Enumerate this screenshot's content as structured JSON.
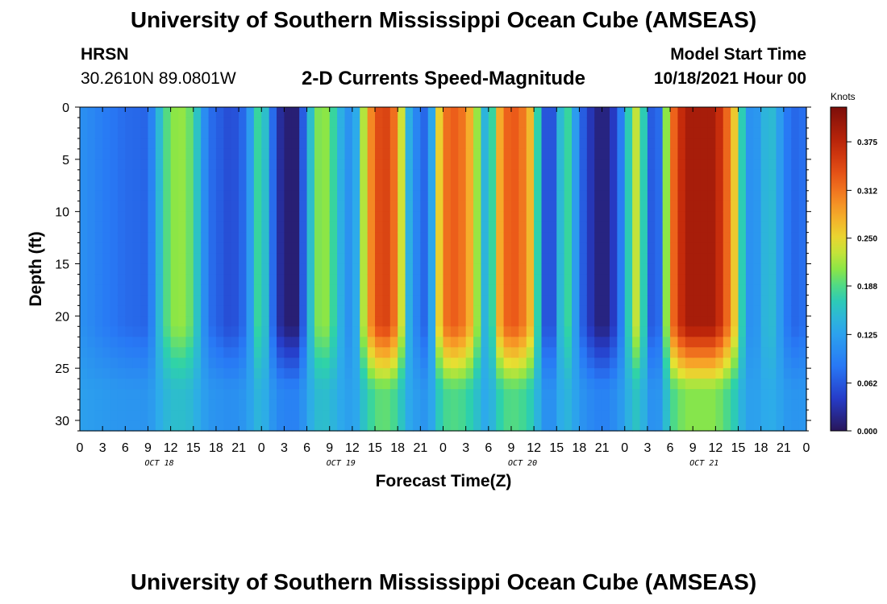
{
  "header": {
    "title": "University of Southern Mississippi Ocean Cube (AMSEAS)",
    "station": "HRSN",
    "coords": "30.2610N  89.0801W",
    "subtitle": "2-D Currents Speed-Magnitude",
    "model_start_label": "Model Start Time",
    "model_start_value": "10/18/2021 Hour 00"
  },
  "footer": {
    "title": "University of Southern Mississippi Ocean Cube (AMSEAS)"
  },
  "chart_data": {
    "type": "heatmap",
    "title": "2-D Currents Speed-Magnitude",
    "xlabel": "Forecast Time(Z)",
    "ylabel": "Depth (ft)",
    "x_tick_labels": [
      "0",
      "3",
      "6",
      "9",
      "12",
      "15",
      "18",
      "21",
      "0",
      "3",
      "6",
      "9",
      "12",
      "15",
      "18",
      "21",
      "0",
      "3",
      "6",
      "9",
      "12",
      "15",
      "18",
      "21",
      "0",
      "3",
      "6",
      "9",
      "12",
      "15",
      "18",
      "21",
      "0"
    ],
    "x_range_hours": [
      0,
      96
    ],
    "day_labels": [
      "OCT 18",
      "OCT 19",
      "OCT 20",
      "OCT 21"
    ],
    "y_ticks": [
      0,
      5,
      10,
      15,
      20,
      25,
      30
    ],
    "y_range_ft": [
      0,
      31
    ],
    "y_inverted": true,
    "colorbar": {
      "units": "Knots",
      "ticks": [
        "0.000",
        "0.062",
        "0.125",
        "0.188",
        "0.250",
        "0.312",
        "0.375"
      ],
      "range": [
        0,
        0.42
      ],
      "colormap": "jet"
    },
    "surface_speed_knots_by_hour": [
      [
        0,
        0.11
      ],
      [
        3,
        0.09
      ],
      [
        6,
        0.075
      ],
      [
        9,
        0.07
      ],
      [
        10,
        0.12
      ],
      [
        11,
        0.18
      ],
      [
        13,
        0.22
      ],
      [
        15,
        0.19
      ],
      [
        16,
        0.13
      ],
      [
        17,
        0.08
      ],
      [
        20,
        0.05
      ],
      [
        22,
        0.08
      ],
      [
        23,
        0.16
      ],
      [
        24,
        0.2
      ],
      [
        25,
        0.11
      ],
      [
        26,
        0.04
      ],
      [
        27,
        0.01
      ],
      [
        29,
        0.01
      ],
      [
        30,
        0.12
      ],
      [
        31,
        0.19
      ],
      [
        32,
        0.22
      ],
      [
        33,
        0.2
      ],
      [
        34,
        0.16
      ],
      [
        35,
        0.12
      ],
      [
        36,
        0.1
      ],
      [
        37,
        0.17
      ],
      [
        38,
        0.28
      ],
      [
        40,
        0.36
      ],
      [
        42,
        0.3
      ],
      [
        43,
        0.17
      ],
      [
        44,
        0.11
      ],
      [
        46,
        0.06
      ],
      [
        47,
        0.2
      ],
      [
        48,
        0.31
      ],
      [
        50,
        0.33
      ],
      [
        52,
        0.26
      ],
      [
        53,
        0.17
      ],
      [
        54,
        0.12
      ],
      [
        55,
        0.24
      ],
      [
        56,
        0.32
      ],
      [
        58,
        0.33
      ],
      [
        60,
        0.25
      ],
      [
        61,
        0.1
      ],
      [
        62,
        0.02
      ],
      [
        63,
        0.1
      ],
      [
        64,
        0.2
      ],
      [
        65,
        0.16
      ],
      [
        66,
        0.08
      ],
      [
        68,
        0.02
      ],
      [
        69,
        0.01
      ],
      [
        70,
        0.02
      ],
      [
        71,
        0.06
      ],
      [
        72,
        0.12
      ],
      [
        73,
        0.22
      ],
      [
        74,
        0.24
      ],
      [
        75,
        0.1
      ],
      [
        76,
        0.03
      ],
      [
        77,
        0.12
      ],
      [
        78,
        0.3
      ],
      [
        80,
        0.39
      ],
      [
        84,
        0.39
      ],
      [
        85,
        0.34
      ],
      [
        86,
        0.3
      ],
      [
        87,
        0.22
      ],
      [
        88,
        0.12
      ],
      [
        89,
        0.1
      ],
      [
        90,
        0.13
      ],
      [
        91,
        0.16
      ],
      [
        92,
        0.14
      ],
      [
        93,
        0.1
      ],
      [
        94,
        0.07
      ],
      [
        96,
        0.08
      ]
    ]
  }
}
